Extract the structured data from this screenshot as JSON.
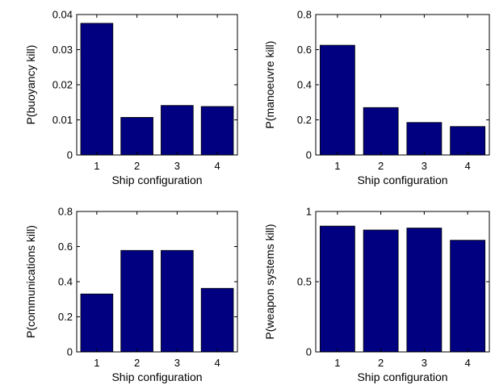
{
  "chart_data": [
    {
      "type": "bar",
      "categories": [
        "1",
        "2",
        "3",
        "4"
      ],
      "values": [
        0.0375,
        0.0107,
        0.0141,
        0.0138
      ],
      "xlabel": "Ship configuration",
      "ylabel": "P(buoyancy kill)",
      "ylim": [
        0,
        0.04
      ],
      "yticks": [
        "0",
        "0.01",
        "0.02",
        "0.03",
        "0.04"
      ],
      "grid": false,
      "color": "#000080"
    },
    {
      "type": "bar",
      "categories": [
        "1",
        "2",
        "3",
        "4"
      ],
      "values": [
        0.625,
        0.27,
        0.185,
        0.162
      ],
      "xlabel": "Ship configuration",
      "ylabel": "P(manoeuvre kill)",
      "ylim": [
        0,
        0.8
      ],
      "yticks": [
        "0",
        "0.2",
        "0.4",
        "0.6",
        "0.8"
      ],
      "grid": false,
      "color": "#000080"
    },
    {
      "type": "bar",
      "categories": [
        "1",
        "2",
        "3",
        "4"
      ],
      "values": [
        0.33,
        0.578,
        0.578,
        0.362
      ],
      "xlabel": "Ship configuration",
      "ylabel": "P(communications kill)",
      "ylim": [
        0,
        0.8
      ],
      "yticks": [
        "0",
        "0.2",
        "0.4",
        "0.6",
        "0.8"
      ],
      "grid": false,
      "color": "#000080"
    },
    {
      "type": "bar",
      "categories": [
        "1",
        "2",
        "3",
        "4"
      ],
      "values": [
        0.896,
        0.868,
        0.882,
        0.795
      ],
      "xlabel": "Ship configuration",
      "ylabel": "P(weapon systems kill)",
      "ylim": [
        0,
        1
      ],
      "yticks": [
        "0",
        "0.5",
        "1"
      ],
      "grid": false,
      "color": "#000080"
    }
  ]
}
